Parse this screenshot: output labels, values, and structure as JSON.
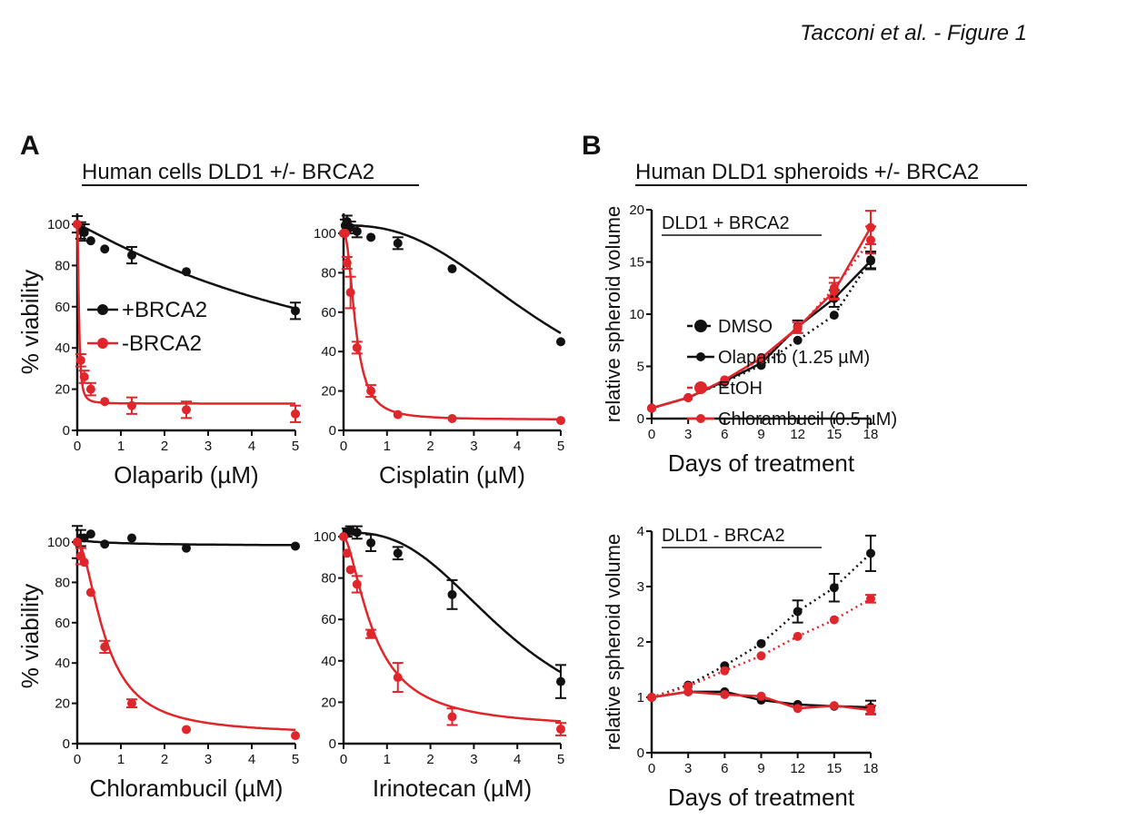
{
  "figure_title": "Tacconi et al. - Figure 1",
  "panel_a": {
    "letter": "A",
    "heading": "Human cells DLD1 +/- BRCA2"
  },
  "panel_b": {
    "letter": "B",
    "heading": "Human DLD1 spheroids +/- BRCA2"
  },
  "colors": {
    "black": "#111111",
    "red": "#e0262b"
  },
  "chart_data": [
    {
      "id": "olaparib",
      "type": "line",
      "xlabel": "Olaparib (µM)",
      "ylabel": "% viability",
      "xlim": [
        0,
        5
      ],
      "ylim": [
        0,
        100
      ],
      "xticks": [
        0,
        1,
        2,
        3,
        4,
        5
      ],
      "yticks": [
        0,
        20,
        40,
        60,
        80,
        100
      ],
      "legend": {
        "placement": "center-left",
        "entries": [
          "+BRCA2",
          "-BRCA2"
        ]
      },
      "x": [
        0,
        0.08,
        0.16,
        0.31,
        0.63,
        1.25,
        2.5,
        5
      ],
      "series": [
        {
          "name": "+BRCA2",
          "color": "black",
          "values": [
            100,
            97,
            96,
            92,
            88,
            85,
            77,
            58
          ],
          "err": [
            4,
            4,
            4,
            0,
            0,
            4,
            0,
            4
          ],
          "fit": {
            "top": 100,
            "bottom": 0,
            "ic50": 7,
            "hill": 1.1
          }
        },
        {
          "name": "-BRCA2",
          "color": "red",
          "values": [
            100,
            34,
            26,
            20,
            14,
            12,
            10,
            8
          ],
          "err": [
            0,
            3,
            3,
            3,
            0,
            4,
            4,
            4
          ],
          "fit": {
            "top": 100,
            "bottom": 13,
            "ic50": 0.04,
            "hill": 2
          }
        }
      ]
    },
    {
      "id": "cisplatin",
      "type": "line",
      "xlabel": "Cisplatin (µM)",
      "ylabel": "",
      "xlim": [
        0,
        5
      ],
      "ylim": [
        0,
        100
      ],
      "xticks": [
        0,
        1,
        2,
        3,
        4,
        5
      ],
      "yticks": [
        0,
        20,
        40,
        60,
        80,
        100
      ],
      "x": [
        0,
        0.04,
        0.08,
        0.16,
        0.31,
        0.63,
        1.25,
        2.5,
        5
      ],
      "series": [
        {
          "name": "+BRCA2",
          "color": "black",
          "values": [
            100,
            104,
            106,
            103,
            101,
            98,
            95,
            82,
            45
          ],
          "err": [
            0,
            3,
            3,
            3,
            3,
            0,
            3,
            0,
            0
          ],
          "fit": {
            "top": 104,
            "bottom": 0,
            "ic50": 4.8,
            "hill": 2.5
          }
        },
        {
          "name": "-BRCA2",
          "color": "red",
          "values": [
            100,
            100,
            85,
            70,
            42,
            20,
            8,
            6,
            5
          ],
          "err": [
            0,
            0,
            3,
            8,
            3,
            3,
            0,
            0,
            0
          ],
          "fit": {
            "top": 100,
            "bottom": 5.5,
            "ic50": 0.28,
            "hill": 2.2
          }
        }
      ]
    },
    {
      "id": "chlorambucil",
      "type": "line",
      "xlabel": "Chlorambucil (µM)",
      "ylabel": "% viability",
      "xlim": [
        0,
        5
      ],
      "ylim": [
        0,
        100
      ],
      "xticks": [
        0,
        1,
        2,
        3,
        4,
        5
      ],
      "yticks": [
        0,
        20,
        40,
        60,
        80,
        100
      ],
      "x": [
        0,
        0.08,
        0.16,
        0.31,
        0.63,
        1.25,
        2.5,
        5
      ],
      "series": [
        {
          "name": "+BRCA2",
          "color": "black",
          "values": [
            100,
            102,
            102,
            104,
            99,
            102,
            97,
            98
          ],
          "err": [
            8,
            4,
            0,
            0,
            0,
            0,
            0,
            0
          ],
          "fit": {
            "top": 101,
            "bottom": 98,
            "ic50": 1,
            "hill": 1
          }
        },
        {
          "name": "-BRCA2",
          "color": "red",
          "values": [
            100,
            93,
            90,
            75,
            48,
            20,
            7,
            4
          ],
          "err": [
            0,
            4,
            0,
            0,
            3,
            2,
            0,
            0
          ],
          "fit": {
            "top": 100,
            "bottom": 4.5,
            "ic50": 0.65,
            "hill": 1.8
          }
        }
      ]
    },
    {
      "id": "irinotecan",
      "type": "line",
      "xlabel": "Irinotecan (µM)",
      "ylabel": "",
      "xlim": [
        0,
        5
      ],
      "ylim": [
        0,
        100
      ],
      "xticks": [
        0,
        1,
        2,
        3,
        4,
        5
      ],
      "yticks": [
        0,
        20,
        40,
        60,
        80,
        100
      ],
      "x": [
        0,
        0.08,
        0.16,
        0.31,
        0.63,
        1.25,
        2.5,
        5
      ],
      "series": [
        {
          "name": "+BRCA2",
          "color": "black",
          "values": [
            100,
            102,
            103,
            102,
            97,
            92,
            72,
            30
          ],
          "err": [
            0,
            2,
            2,
            3,
            4,
            3,
            7,
            8
          ],
          "fit": {
            "top": 102,
            "bottom": 0,
            "ic50": 3.9,
            "hill": 2.7
          }
        },
        {
          "name": "-BRCA2",
          "color": "red",
          "values": [
            100,
            92,
            84,
            77,
            53,
            32,
            13,
            7
          ],
          "err": [
            0,
            0,
            0,
            4,
            2,
            7,
            4,
            3
          ],
          "fit": {
            "top": 100,
            "bottom": 7,
            "ic50": 0.7,
            "hill": 1.6
          }
        }
      ]
    },
    {
      "id": "spheroid-plus",
      "type": "line",
      "inner_title": "DLD1 + BRCA2",
      "xlabel": "Days of treatment",
      "ylabel": "relative spheroid volume",
      "xlim": [
        0,
        18
      ],
      "ylim": [
        0,
        20
      ],
      "xticks": [
        0,
        3,
        6,
        9,
        12,
        15,
        18
      ],
      "yticks": [
        0,
        5,
        10,
        15,
        20
      ],
      "legend": {
        "placement": "right",
        "entries": [
          "DMSO",
          "Olaparib (1.25 µM)",
          "EtOH",
          "Chlorambucil (0.5 µM)"
        ]
      },
      "x": [
        0,
        3,
        6,
        9,
        12,
        15,
        18
      ],
      "series": [
        {
          "name": "DMSO",
          "color": "black",
          "style": "dotted",
          "values": [
            1,
            2,
            3.5,
            5.1,
            7.5,
            9.9,
            15.2
          ],
          "err": [
            0,
            0,
            0,
            0,
            0,
            0,
            0.8
          ]
        },
        {
          "name": "Olaparib (1.25 µM)",
          "color": "black",
          "style": "solid",
          "values": [
            1,
            2,
            3.6,
            5.3,
            8.8,
            11.5,
            15.1
          ],
          "err": [
            0,
            0,
            0,
            0,
            0.6,
            0.8,
            0.8
          ]
        },
        {
          "name": "EtOH",
          "color": "red",
          "style": "dotted",
          "values": [
            1,
            2,
            3.7,
            5.7,
            8.6,
            12.5,
            17.1
          ],
          "err": [
            0,
            0,
            0,
            0,
            0,
            1,
            1.3
          ]
        },
        {
          "name": "Chlorambucil (0.5 µM)",
          "color": "red",
          "style": "solid",
          "values": [
            1,
            2,
            3.7,
            5.8,
            8.7,
            12.2,
            18.3
          ],
          "err": [
            0,
            0,
            0,
            0,
            0.5,
            0.8,
            1.6
          ]
        }
      ]
    },
    {
      "id": "spheroid-minus",
      "type": "line",
      "inner_title": "DLD1 - BRCA2",
      "xlabel": "Days of treatment",
      "ylabel": "relative spheroid volume",
      "xlim": [
        0,
        18
      ],
      "ylim": [
        0,
        4
      ],
      "xticks": [
        0,
        3,
        6,
        9,
        12,
        15,
        18
      ],
      "yticks": [
        0,
        1,
        2,
        3,
        4
      ],
      "x": [
        0,
        3,
        6,
        9,
        12,
        15,
        18
      ],
      "series": [
        {
          "name": "DMSO",
          "color": "black",
          "style": "dotted",
          "values": [
            1,
            1.22,
            1.57,
            1.97,
            2.55,
            2.98,
            3.6
          ],
          "err": [
            0,
            0,
            0,
            0,
            0.2,
            0.25,
            0.32
          ]
        },
        {
          "name": "Olaparib (1.25 µM)",
          "color": "black",
          "style": "solid",
          "values": [
            1,
            1.1,
            1.1,
            0.95,
            0.87,
            0.84,
            0.82
          ],
          "err": [
            0,
            0,
            0,
            0,
            0,
            0,
            0.12
          ]
        },
        {
          "name": "EtOH",
          "color": "red",
          "style": "dotted",
          "values": [
            1,
            1.2,
            1.48,
            1.75,
            2.1,
            2.4,
            2.78
          ],
          "err": [
            0,
            0,
            0,
            0,
            0,
            0,
            0.07
          ]
        },
        {
          "name": "Chlorambucil (0.5 µM)",
          "color": "red",
          "style": "solid",
          "values": [
            1,
            1.1,
            1.05,
            1.02,
            0.8,
            0.85,
            0.77
          ],
          "err": [
            0,
            0,
            0,
            0,
            0,
            0,
            0.08
          ]
        }
      ]
    }
  ]
}
